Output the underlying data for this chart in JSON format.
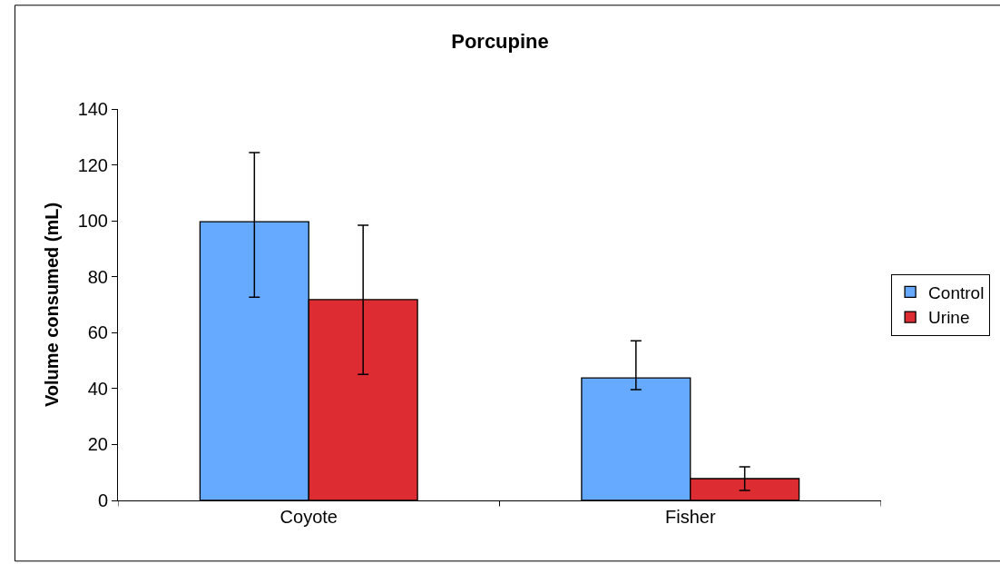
{
  "chart_data": {
    "type": "bar",
    "title": "Porcupine",
    "ylabel": "Volume consumed (mL)",
    "categories": [
      "Coyote",
      "Fisher"
    ],
    "series": [
      {
        "name": "Control",
        "color": "#66aaff",
        "values": [
          99.7,
          43.8
        ],
        "errors": [
          [
            72.7,
            124.4
          ],
          [
            39.6,
            57.1
          ]
        ]
      },
      {
        "name": "Urine",
        "color": "#dd2d33",
        "values": [
          71.8,
          7.8
        ],
        "errors": [
          [
            45.1,
            98.4
          ],
          [
            3.6,
            12.0
          ]
        ]
      }
    ],
    "ylim": [
      0,
      140
    ],
    "yticks": [
      0,
      20,
      40,
      60,
      80,
      100,
      120,
      140
    ],
    "legend": "right"
  }
}
